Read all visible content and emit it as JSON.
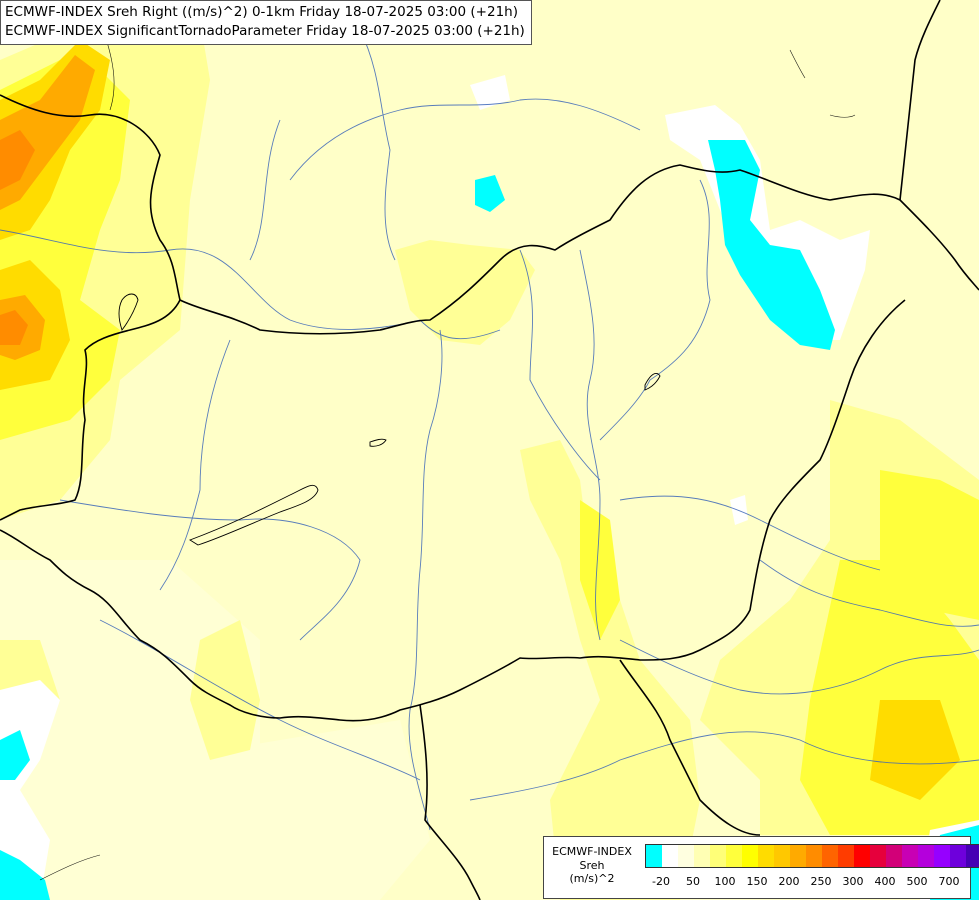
{
  "header": {
    "line1": "ECMWF-INDEX Sreh Right ((m/s)^2) 0-1km Friday 18-07-2025 03:00 (+21h)",
    "line2": "ECMWF-INDEX SignificantTornadoParameter Friday 18-07-2025 03:00 (+21h)"
  },
  "legend": {
    "title_line1": "ECMWF-INDEX",
    "title_line2": "Sreh",
    "title_line3": "(m/s)^2",
    "swatch_colors": [
      "#00ffff",
      "#ffffff",
      "#ffffe0",
      "#ffffb4",
      "#ffff78",
      "#ffff3c",
      "#ffff00",
      "#ffdc00",
      "#ffc800",
      "#ffaa00",
      "#ff8c00",
      "#ff6400",
      "#ff3c00",
      "#ff0000",
      "#e6003c",
      "#d20078",
      "#c800b4",
      "#b400dc",
      "#9600ff",
      "#6e00dc",
      "#4600b4",
      "#1e0096"
    ],
    "ticks": [
      {
        "label": "-20",
        "index": 1
      },
      {
        "label": "50",
        "index": 3
      },
      {
        "label": "100",
        "index": 5
      },
      {
        "label": "150",
        "index": 7
      },
      {
        "label": "200",
        "index": 9
      },
      {
        "label": "250",
        "index": 11
      },
      {
        "label": "300",
        "index": 13
      },
      {
        "label": "400",
        "index": 15
      },
      {
        "label": "500",
        "index": 17
      },
      {
        "label": "700",
        "index": 19
      }
    ]
  }
}
